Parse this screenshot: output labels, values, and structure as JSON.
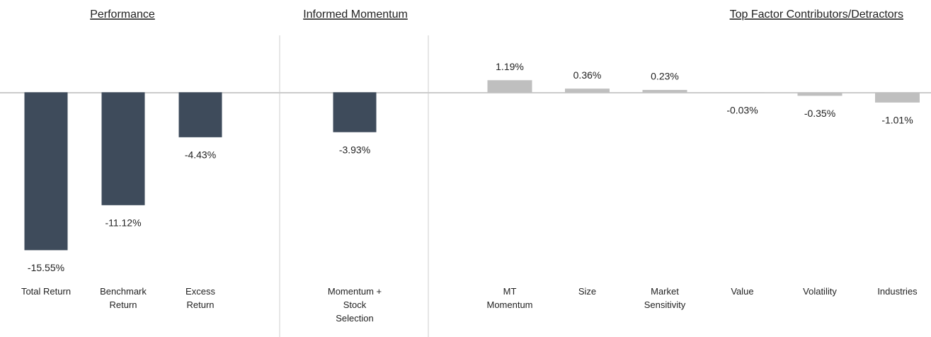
{
  "chart_data": [
    {
      "type": "bar",
      "title": "Performance",
      "categories": [
        "Total Return",
        "Benchmark Return",
        "Excess Return"
      ],
      "values": [
        -15.55,
        -11.12,
        -4.43
      ],
      "value_labels": [
        "-15.55%",
        "-11.12%",
        "-4.43%"
      ],
      "color": "#3e4b5b",
      "ylim": [
        -18.8,
        5.6
      ]
    },
    {
      "type": "bar",
      "title": "Informed Momentum",
      "categories": [
        "Momentum + Stock Selection"
      ],
      "values": [
        -3.93
      ],
      "value_labels": [
        "-3.93%"
      ],
      "color": "#3e4b5b",
      "ylim": [
        -18.8,
        5.6
      ]
    },
    {
      "type": "bar",
      "title": "Top Factor Contributors/Detractors",
      "categories": [
        "MT Momentum",
        "Size",
        "Market Sensitivity",
        "Value",
        "Volatility",
        "Industries"
      ],
      "values": [
        1.19,
        0.36,
        0.23,
        -0.03,
        -0.35,
        -1.01
      ],
      "value_labels": [
        "1.19%",
        "0.36%",
        "0.23%",
        "-0.03%",
        "-0.35%",
        "-1.01%"
      ],
      "color": "#bfbfbf",
      "ylim": [
        -18.8,
        5.6
      ]
    }
  ]
}
